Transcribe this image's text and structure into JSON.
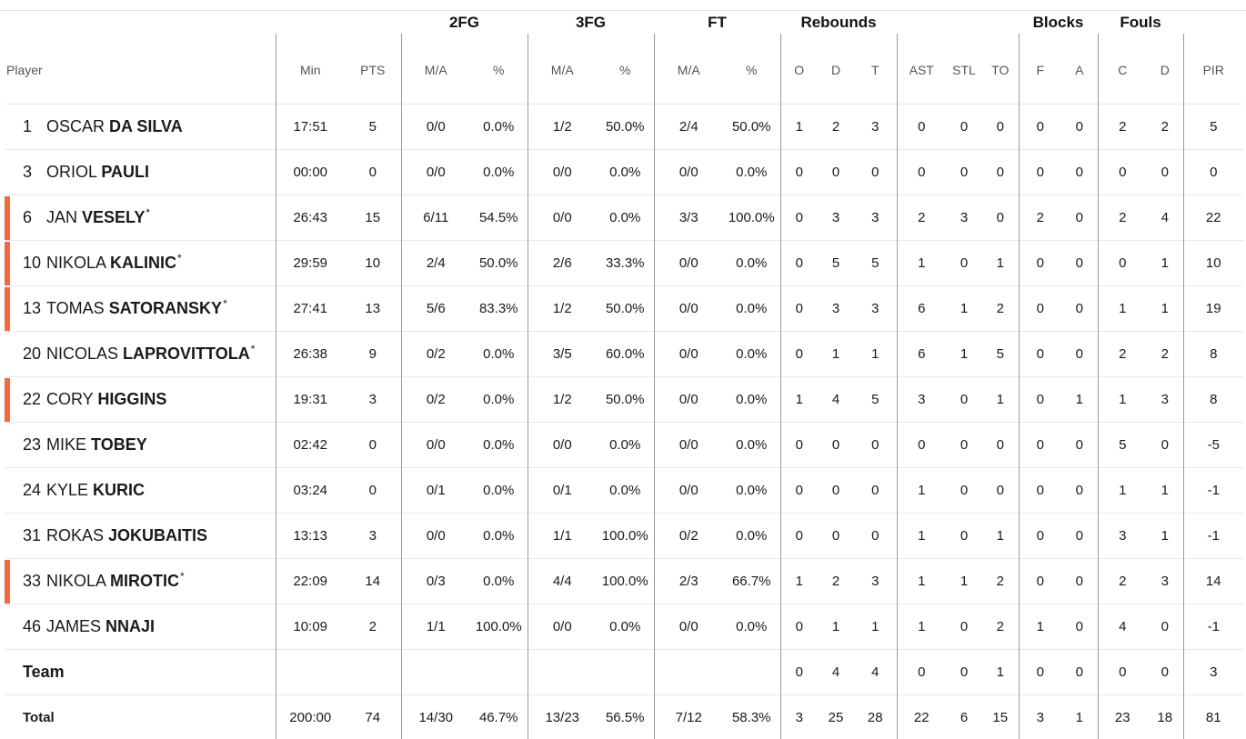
{
  "header": {
    "groups": {
      "fg2": "2FG",
      "fg3": "3FG",
      "ft": "FT",
      "rebounds": "Rebounds",
      "blocks": "Blocks",
      "fouls": "Fouls"
    },
    "columns": {
      "player": "Player",
      "min": "Min",
      "pts": "PTS",
      "fg2_ma": "M/A",
      "fg2_pct": "%",
      "fg3_ma": "M/A",
      "fg3_pct": "%",
      "ft_ma": "M/A",
      "ft_pct": "%",
      "reb_o": "O",
      "reb_d": "D",
      "reb_t": "T",
      "ast": "AST",
      "stl": "STL",
      "to": "TO",
      "blk_f": "F",
      "blk_a": "A",
      "fouls_c": "C",
      "fouls_d": "D",
      "pir": "PIR"
    }
  },
  "colors": {
    "marker": "#f26a3b",
    "divider": "#9a9a9a",
    "row_border": "#e9e9e9"
  },
  "players": [
    {
      "number": "1",
      "first": "OSCAR",
      "last": "DA SILVA",
      "starter": "",
      "marker": false,
      "stats": [
        "17:51",
        "5",
        "0/0",
        "0.0%",
        "1/2",
        "50.0%",
        "2/4",
        "50.0%",
        "1",
        "2",
        "3",
        "0",
        "0",
        "0",
        "0",
        "0",
        "2",
        "2",
        "5"
      ]
    },
    {
      "number": "3",
      "first": "ORIOL",
      "last": "PAULI",
      "starter": "",
      "marker": false,
      "stats": [
        "00:00",
        "0",
        "0/0",
        "0.0%",
        "0/0",
        "0.0%",
        "0/0",
        "0.0%",
        "0",
        "0",
        "0",
        "0",
        "0",
        "0",
        "0",
        "0",
        "0",
        "0",
        "0"
      ]
    },
    {
      "number": "6",
      "first": "JAN",
      "last": "VESELY",
      "starter": "*",
      "marker": true,
      "stats": [
        "26:43",
        "15",
        "6/11",
        "54.5%",
        "0/0",
        "0.0%",
        "3/3",
        "100.0%",
        "0",
        "3",
        "3",
        "2",
        "3",
        "0",
        "2",
        "0",
        "2",
        "4",
        "22"
      ]
    },
    {
      "number": "10",
      "first": "NIKOLA",
      "last": "KALINIC",
      "starter": "*",
      "marker": true,
      "stats": [
        "29:59",
        "10",
        "2/4",
        "50.0%",
        "2/6",
        "33.3%",
        "0/0",
        "0.0%",
        "0",
        "5",
        "5",
        "1",
        "0",
        "1",
        "0",
        "0",
        "0",
        "1",
        "10"
      ]
    },
    {
      "number": "13",
      "first": "TOMAS",
      "last": "SATORANSKY",
      "starter": "*",
      "marker": true,
      "stats": [
        "27:41",
        "13",
        "5/6",
        "83.3%",
        "1/2",
        "50.0%",
        "0/0",
        "0.0%",
        "0",
        "3",
        "3",
        "6",
        "1",
        "2",
        "0",
        "0",
        "1",
        "1",
        "19"
      ]
    },
    {
      "number": "20",
      "first": "NICOLAS",
      "last": "LAPROVITTOLA",
      "starter": "*",
      "marker": false,
      "stats": [
        "26:38",
        "9",
        "0/2",
        "0.0%",
        "3/5",
        "60.0%",
        "0/0",
        "0.0%",
        "0",
        "1",
        "1",
        "6",
        "1",
        "5",
        "0",
        "0",
        "2",
        "2",
        "8"
      ]
    },
    {
      "number": "22",
      "first": "CORY",
      "last": "HIGGINS",
      "starter": "",
      "marker": true,
      "stats": [
        "19:31",
        "3",
        "0/2",
        "0.0%",
        "1/2",
        "50.0%",
        "0/0",
        "0.0%",
        "1",
        "4",
        "5",
        "3",
        "0",
        "1",
        "0",
        "1",
        "1",
        "3",
        "8"
      ]
    },
    {
      "number": "23",
      "first": "MIKE",
      "last": "TOBEY",
      "starter": "",
      "marker": false,
      "stats": [
        "02:42",
        "0",
        "0/0",
        "0.0%",
        "0/0",
        "0.0%",
        "0/0",
        "0.0%",
        "0",
        "0",
        "0",
        "0",
        "0",
        "0",
        "0",
        "0",
        "5",
        "0",
        "-5"
      ]
    },
    {
      "number": "24",
      "first": "KYLE",
      "last": "KURIC",
      "starter": "",
      "marker": false,
      "stats": [
        "03:24",
        "0",
        "0/1",
        "0.0%",
        "0/1",
        "0.0%",
        "0/0",
        "0.0%",
        "0",
        "0",
        "0",
        "1",
        "0",
        "0",
        "0",
        "0",
        "1",
        "1",
        "-1"
      ]
    },
    {
      "number": "31",
      "first": "ROKAS",
      "last": "JOKUBAITIS",
      "starter": "",
      "marker": false,
      "stats": [
        "13:13",
        "3",
        "0/0",
        "0.0%",
        "1/1",
        "100.0%",
        "0/2",
        "0.0%",
        "0",
        "0",
        "0",
        "1",
        "0",
        "1",
        "0",
        "0",
        "3",
        "1",
        "-1"
      ]
    },
    {
      "number": "33",
      "first": "NIKOLA",
      "last": "MIROTIC",
      "starter": "*",
      "marker": true,
      "stats": [
        "22:09",
        "14",
        "0/3",
        "0.0%",
        "4/4",
        "100.0%",
        "2/3",
        "66.7%",
        "1",
        "2",
        "3",
        "1",
        "1",
        "2",
        "0",
        "0",
        "2",
        "3",
        "14"
      ]
    },
    {
      "number": "46",
      "first": "JAMES",
      "last": "NNAJI",
      "starter": "",
      "marker": false,
      "stats": [
        "10:09",
        "2",
        "1/1",
        "100.0%",
        "0/0",
        "0.0%",
        "0/0",
        "0.0%",
        "0",
        "1",
        "1",
        "1",
        "0",
        "2",
        "1",
        "0",
        "4",
        "0",
        "-1"
      ]
    }
  ],
  "team": {
    "label": "Team",
    "stats": [
      "",
      "",
      "",
      "",
      "",
      "",
      "",
      "",
      "0",
      "4",
      "4",
      "0",
      "0",
      "1",
      "0",
      "0",
      "0",
      "0",
      "3"
    ]
  },
  "total": {
    "label": "Total",
    "stats": [
      "200:00",
      "74",
      "14/30",
      "46.7%",
      "13/23",
      "56.5%",
      "7/12",
      "58.3%",
      "3",
      "25",
      "28",
      "22",
      "6",
      "15",
      "3",
      "1",
      "23",
      "18",
      "81"
    ]
  }
}
